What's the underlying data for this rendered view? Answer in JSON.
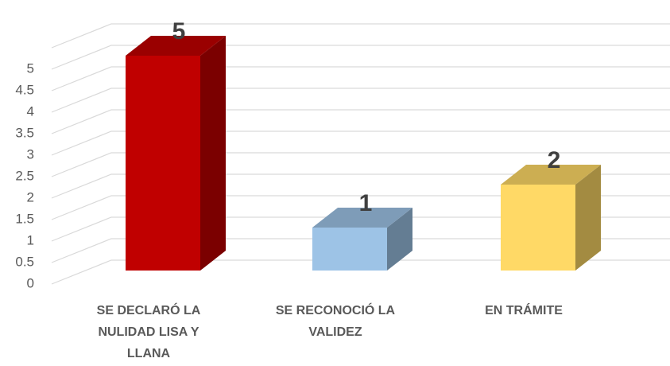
{
  "chart_data": {
    "type": "bar3d",
    "categories": [
      "SE DECLARÓ LA NULIDAD LISA Y LLANA",
      "SE RECONOCIÓ LA VALIDEZ",
      "EN TRÁMITE"
    ],
    "values": [
      5,
      1,
      2
    ],
    "colors": [
      "#c00000",
      "#9dc3e6",
      "#ffd966"
    ],
    "ylim": [
      0,
      5.5
    ],
    "yticks": [
      0,
      0.5,
      1,
      1.5,
      2,
      2.5,
      3,
      3.5,
      4,
      4.5,
      5
    ],
    "grid": true
  }
}
